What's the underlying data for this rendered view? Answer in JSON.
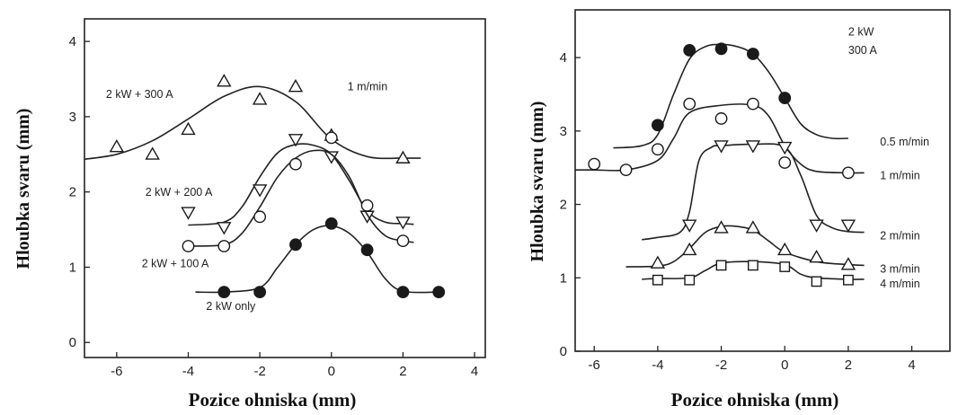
{
  "chart_data": [
    {
      "id": "left",
      "type": "scatter",
      "xlabel": "Pozice ohniska (mm)",
      "ylabel": "Hloubka svaru (mm)",
      "xlim": [
        -6.9,
        4.3
      ],
      "ylim": [
        -0.2,
        4.3
      ],
      "xticks": [
        -6,
        -4,
        -2,
        0,
        2,
        4
      ],
      "yticks": [
        0,
        1,
        2,
        3,
        4
      ],
      "grid": false,
      "series": [
        {
          "name": "2 kW + 300 A",
          "marker": "triangle-up",
          "x": [
            -6,
            -5,
            -4,
            -3,
            -2,
            -1,
            0,
            2
          ],
          "y": [
            2.6,
            2.5,
            2.83,
            3.47,
            3.23,
            3.4,
            2.75,
            2.45
          ],
          "curve_x": [
            -7,
            -6,
            -5,
            -4,
            -3,
            -2,
            -1,
            0,
            1,
            2,
            2.5
          ],
          "curve_y": [
            2.43,
            2.5,
            2.68,
            2.97,
            3.27,
            3.4,
            3.2,
            2.7,
            2.47,
            2.45,
            2.45
          ]
        },
        {
          "name": "2 kW + 200 A",
          "marker": "triangle-down",
          "x": [
            -4,
            -3,
            -2,
            -1,
            0,
            1,
            2
          ],
          "y": [
            1.73,
            1.53,
            2.03,
            2.7,
            2.47,
            1.68,
            1.6
          ],
          "curve_x": [
            -4,
            -3,
            -2.5,
            -2,
            -1.5,
            -1,
            -0.5,
            0,
            0.5,
            1,
            1.5,
            2,
            2.3
          ],
          "curve_y": [
            1.56,
            1.6,
            1.8,
            2.2,
            2.52,
            2.63,
            2.62,
            2.5,
            2.15,
            1.75,
            1.6,
            1.58,
            1.57
          ]
        },
        {
          "name": "2 kW + 100 A",
          "marker": "circle-open",
          "x": [
            -4,
            -3,
            -2,
            -1,
            0,
            1,
            2
          ],
          "y": [
            1.28,
            1.28,
            1.67,
            2.37,
            2.72,
            1.82,
            1.35
          ],
          "curve_x": [
            -4,
            -3,
            -2.5,
            -2,
            -1.5,
            -1,
            -0.5,
            0,
            0.5,
            1,
            1.5,
            2,
            2.3
          ],
          "curve_y": [
            1.28,
            1.3,
            1.45,
            1.8,
            2.2,
            2.45,
            2.55,
            2.5,
            2.2,
            1.7,
            1.42,
            1.35,
            1.33
          ]
        },
        {
          "name": "2 kW only",
          "marker": "circle-filled",
          "x": [
            -3,
            -2,
            -1,
            0,
            1,
            2,
            3
          ],
          "y": [
            0.67,
            0.67,
            1.3,
            1.58,
            1.23,
            0.67,
            0.67
          ],
          "curve_x": [
            -3.8,
            -3,
            -2,
            -1.5,
            -1,
            -0.5,
            0,
            0.5,
            1,
            1.5,
            2,
            3
          ],
          "curve_y": [
            0.67,
            0.67,
            0.73,
            1.0,
            1.3,
            1.5,
            1.55,
            1.45,
            1.2,
            0.85,
            0.68,
            0.67
          ]
        }
      ],
      "annotations": [
        {
          "text": "2 kW + 300 A",
          "x": -6.3,
          "y": 3.25
        },
        {
          "text": "1 m/min",
          "x": 0.45,
          "y": 3.35
        },
        {
          "text": "2 kW + 200 A",
          "x": -5.2,
          "y": 1.95
        },
        {
          "text": "2 kW + 100 A",
          "x": -5.3,
          "y": 1.0
        },
        {
          "text": "2 kW only",
          "x": -3.5,
          "y": 0.43
        }
      ]
    },
    {
      "id": "right",
      "type": "scatter",
      "xlabel": "Pozice ohniska (mm)",
      "ylabel": "Hloubka svaru (mm)",
      "xlim": [
        -6.6,
        5.2
      ],
      "ylim": [
        0,
        4.65
      ],
      "xticks": [
        -6,
        -4,
        -2,
        0,
        2,
        4
      ],
      "yticks": [
        0,
        1,
        2,
        3,
        4
      ],
      "grid": false,
      "series": [
        {
          "name": "0.5 m/min",
          "marker": "circle-filled",
          "x": [
            -4,
            -3,
            -2,
            -1,
            0
          ],
          "y": [
            3.08,
            4.1,
            4.12,
            4.05,
            3.45
          ],
          "curve_x": [
            -5.4,
            -4.5,
            -4,
            -3.5,
            -3,
            -2.5,
            -2,
            -1.5,
            -1,
            -0.5,
            0,
            0.5,
            1,
            1.5,
            2
          ],
          "curve_y": [
            2.77,
            2.8,
            2.95,
            3.5,
            3.98,
            4.15,
            4.18,
            4.15,
            4.05,
            3.8,
            3.45,
            3.1,
            2.95,
            2.9,
            2.9
          ]
        },
        {
          "name": "1 m/min",
          "marker": "circle-open",
          "x": [
            -6,
            -5,
            -4,
            -3,
            -2,
            -1,
            0,
            2
          ],
          "y": [
            2.55,
            2.47,
            2.75,
            3.37,
            3.17,
            3.37,
            2.57,
            2.43
          ],
          "curve_x": [
            -6.6,
            -6,
            -5,
            -4,
            -3.5,
            -3,
            -2,
            -1,
            -0.5,
            0,
            0.5,
            1,
            2,
            2.5
          ],
          "curve_y": [
            2.47,
            2.47,
            2.47,
            2.6,
            2.9,
            3.25,
            3.35,
            3.35,
            3.2,
            2.8,
            2.55,
            2.45,
            2.43,
            2.43
          ]
        },
        {
          "name": "2 m/min",
          "marker": "triangle-down",
          "x": [
            -3,
            -2,
            -1,
            0,
            1,
            2
          ],
          "y": [
            1.72,
            2.8,
            2.8,
            2.78,
            1.72,
            1.72
          ],
          "curve_x": [
            -4.5,
            -4,
            -3.3,
            -3,
            -2.7,
            -2.3,
            -2,
            -1,
            0,
            0.5,
            1,
            1.5,
            2,
            2.5
          ],
          "curve_y": [
            1.52,
            1.55,
            1.62,
            1.9,
            2.6,
            2.78,
            2.8,
            2.82,
            2.78,
            2.4,
            1.85,
            1.68,
            1.63,
            1.62
          ]
        },
        {
          "name": "3 m/min",
          "marker": "triangle-up",
          "x": [
            -4,
            -3,
            -2,
            -1,
            0,
            1,
            2
          ],
          "y": [
            1.2,
            1.38,
            1.68,
            1.68,
            1.38,
            1.28,
            1.18
          ],
          "curve_x": [
            -5,
            -4,
            -3.5,
            -3,
            -2.5,
            -2,
            -1.5,
            -1,
            -0.5,
            0,
            1,
            2,
            2.5
          ],
          "curve_y": [
            1.15,
            1.16,
            1.22,
            1.4,
            1.62,
            1.7,
            1.7,
            1.65,
            1.5,
            1.35,
            1.22,
            1.18,
            1.17
          ]
        },
        {
          "name": "4 m/min",
          "marker": "square-open",
          "x": [
            -4,
            -3,
            -2,
            -1,
            0,
            1,
            2
          ],
          "y": [
            0.97,
            0.97,
            1.17,
            1.17,
            1.15,
            0.95,
            0.97
          ],
          "curve_x": [
            -4.5,
            -4,
            -3,
            -2.5,
            -2,
            -1,
            0,
            0.5,
            1,
            2,
            2.5
          ],
          "curve_y": [
            0.98,
            0.99,
            1.0,
            1.1,
            1.2,
            1.22,
            1.18,
            1.05,
            1.0,
            0.98,
            0.98
          ]
        }
      ],
      "annotations": [
        {
          "text": "2 kW",
          "x": 2.0,
          "y": 4.3
        },
        {
          "text": "300 A",
          "x": 2.0,
          "y": 4.05
        }
      ]
    }
  ]
}
